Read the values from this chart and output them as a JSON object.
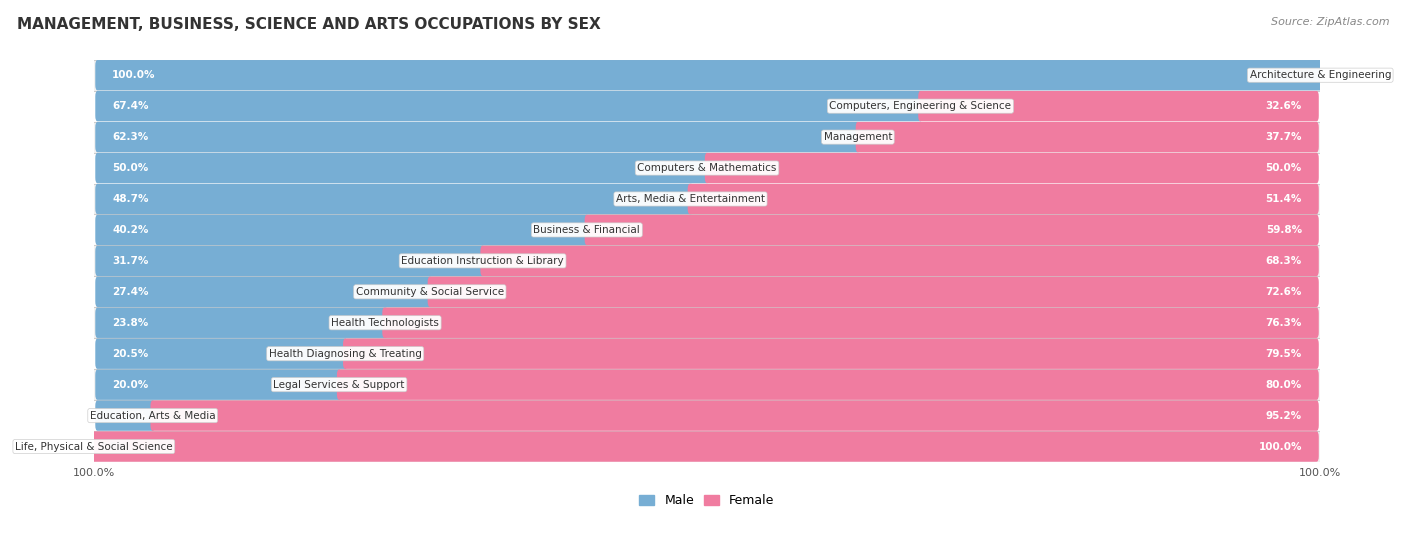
{
  "title": "MANAGEMENT, BUSINESS, SCIENCE AND ARTS OCCUPATIONS BY SEX",
  "source": "Source: ZipAtlas.com",
  "categories": [
    "Architecture & Engineering",
    "Computers, Engineering & Science",
    "Management",
    "Computers & Mathematics",
    "Arts, Media & Entertainment",
    "Business & Financial",
    "Education Instruction & Library",
    "Community & Social Service",
    "Health Technologists",
    "Health Diagnosing & Treating",
    "Legal Services & Support",
    "Education, Arts & Media",
    "Life, Physical & Social Science"
  ],
  "male": [
    100.0,
    67.4,
    62.3,
    50.0,
    48.7,
    40.2,
    31.7,
    27.4,
    23.8,
    20.5,
    20.0,
    4.8,
    0.0
  ],
  "female": [
    0.0,
    32.6,
    37.7,
    50.0,
    51.4,
    59.8,
    68.3,
    72.6,
    76.3,
    79.5,
    80.0,
    95.2,
    100.0
  ],
  "male_color": "#77aed4",
  "female_color": "#f07ca0",
  "bg_color": "#ffffff",
  "row_odd_color": "#f2f2f2",
  "row_even_color": "#ffffff",
  "bar_bg_color": "#e0e0e0",
  "title_fontsize": 11,
  "source_fontsize": 8,
  "label_fontsize": 7.5,
  "bar_label_fontsize": 7.5,
  "legend_fontsize": 9
}
